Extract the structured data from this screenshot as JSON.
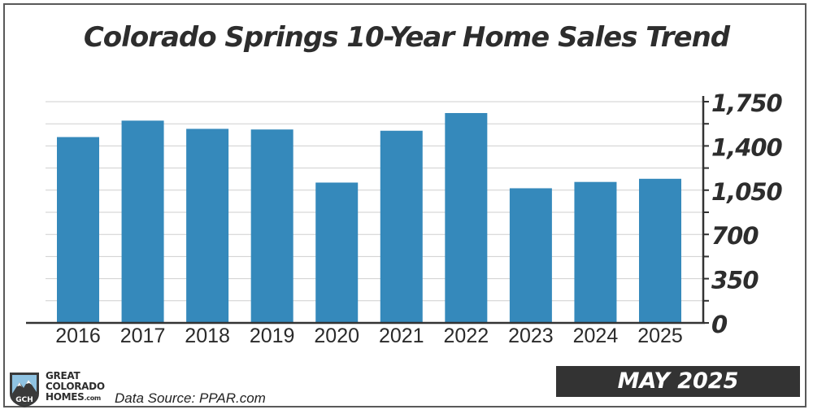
{
  "chart_data": {
    "type": "bar",
    "title": "Colorado Springs 10-Year Home Sales Trend",
    "categories": [
      "2016",
      "2017",
      "2018",
      "2019",
      "2020",
      "2021",
      "2022",
      "2023",
      "2024",
      "2025"
    ],
    "values": [
      1470,
      1600,
      1535,
      1530,
      1110,
      1520,
      1660,
      1065,
      1115,
      1140
    ],
    "yticks": [
      "0",
      "350",
      "700",
      "1,050",
      "1,400",
      "1,750"
    ],
    "ylim": [
      0,
      1750
    ],
    "y_axis_side": "right",
    "grid": true,
    "bar_color": "#3589bb"
  },
  "logo": {
    "line1": "Great",
    "line2": "Colorado",
    "line3": "Homes",
    "suffix": ".com",
    "badge": "GCH"
  },
  "source_text": "Data Source: PPAR.com",
  "date_badge": "MAY 2025"
}
